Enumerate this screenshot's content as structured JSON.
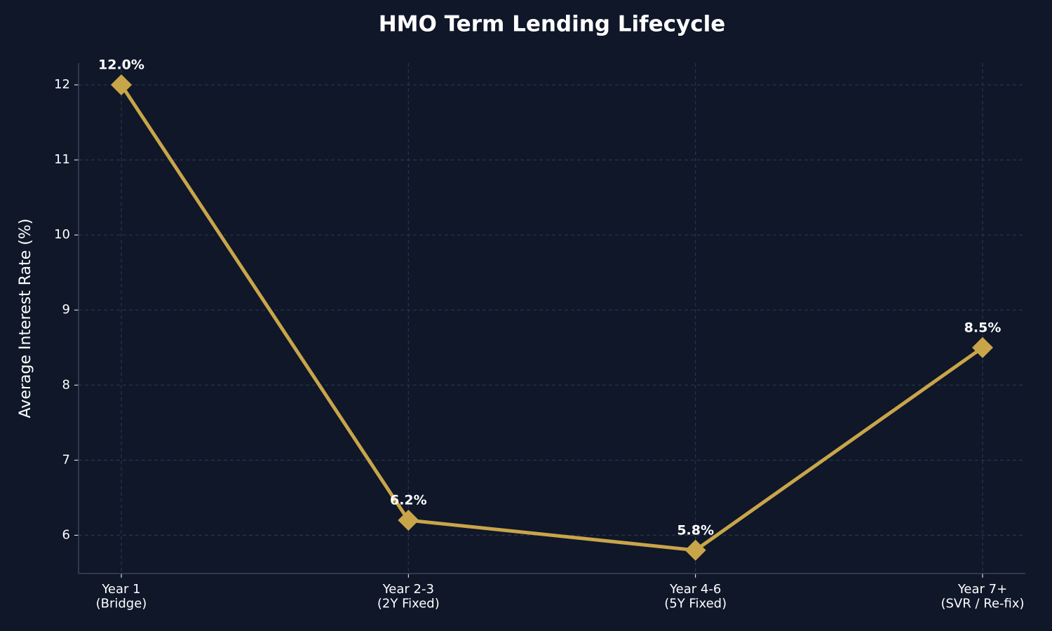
{
  "chart_data": {
    "type": "line",
    "title": "HMO Term Lending Lifecycle",
    "y_label": "Average Interest Rate (%)",
    "categories": [
      "Year 1\n(Bridge)",
      "Year 2-3\n(2Y Fixed)",
      "Year 4-6\n(5Y Fixed)",
      "Year 7+\n(SVR / Re-fix)"
    ],
    "values": [
      12.0,
      6.2,
      5.8,
      8.5
    ],
    "value_labels": [
      "12.0%",
      "6.2%",
      "5.8%",
      "8.5%"
    ],
    "color": "#c9a54a",
    "ylim": [
      5.49,
      12.29
    ],
    "yticks": [
      6,
      7,
      8,
      9,
      10,
      11,
      12
    ],
    "grid": true
  }
}
